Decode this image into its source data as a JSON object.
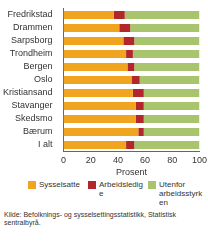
{
  "chart_data": {
    "type": "bar",
    "orientation": "horizontal",
    "stacked": true,
    "categories": [
      "Fredrikstad",
      "Drammen",
      "Sarpsborg",
      "Trondheim",
      "Bergen",
      "Oslo",
      "Kristiansand",
      "Stavanger",
      "Skedsmo",
      "Bærum",
      "I alt"
    ],
    "series": [
      {
        "name": "Sysselsatte",
        "color": "#f0a420",
        "values": [
          37,
          41,
          44,
          46,
          47,
          50,
          51,
          53,
          53,
          55,
          46
        ]
      },
      {
        "name": "Arbeidsledige",
        "color": "#b3262c",
        "values": [
          8,
          8,
          8,
          5,
          5,
          6,
          8,
          6,
          6,
          4,
          6
        ]
      },
      {
        "name": "Utenfor arbeidsstyrken",
        "color": "#a8c56e",
        "values": [
          55,
          51,
          48,
          49,
          48,
          44,
          41,
          41,
          41,
          41,
          48
        ]
      }
    ],
    "x_label": "Prosent",
    "xlim": [
      0,
      100
    ],
    "xticks": [
      0,
      20,
      40,
      60,
      80,
      100
    ],
    "grid": false,
    "legend": "bottom",
    "source": "Kilde: Befolknings- og sysselsettingsstatistikk, Statistisk sentralbyrå."
  }
}
